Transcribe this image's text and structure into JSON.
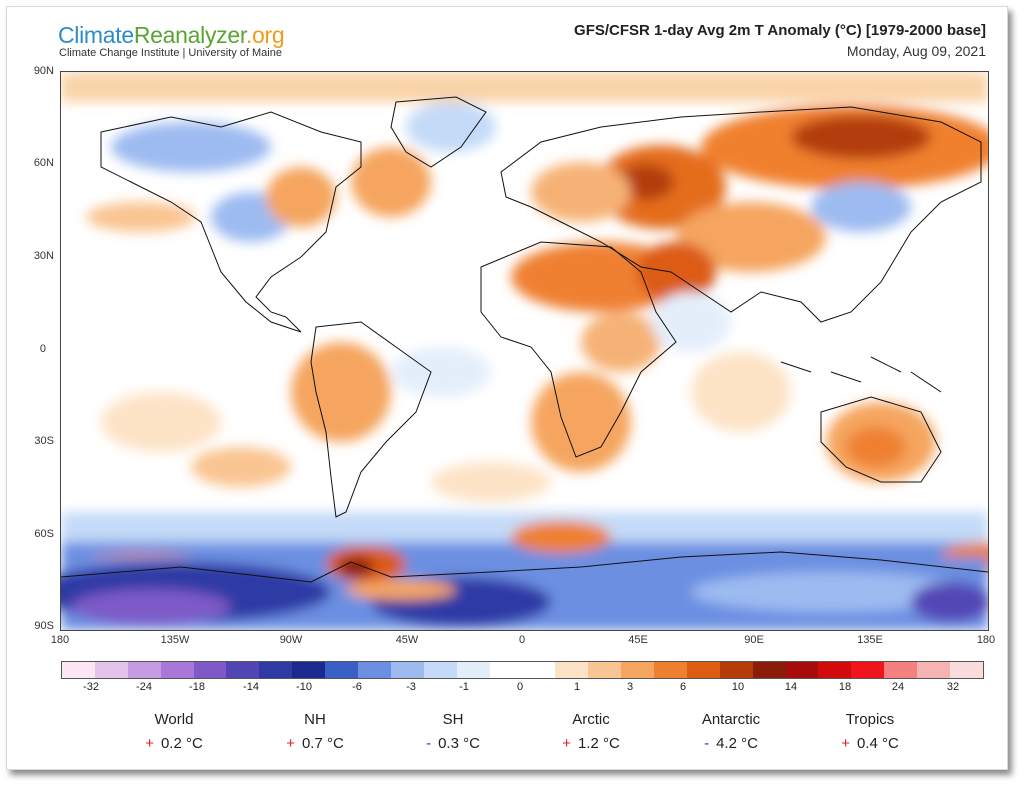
{
  "header": {
    "logo_part1": "Climate",
    "logo_part2": "Reanalyzer",
    "logo_part3": ".org",
    "logo_subtitle": "Climate Change Institute | University of Maine",
    "map_title": "GFS/CFSR 1-day Avg 2m T Anomaly (°C) [1979-2000 base]",
    "map_date": "Monday, Aug 09, 2021",
    "logo_colors": [
      "#2e8bc9",
      "#5aa532",
      "#f29a1c"
    ]
  },
  "map": {
    "lat_labels": [
      "90N",
      "60N",
      "30N",
      "0",
      "30S",
      "60S",
      "90S"
    ],
    "lon_labels": [
      "180",
      "135W",
      "90W",
      "45W",
      "0",
      "45E",
      "90E",
      "135E",
      "180"
    ]
  },
  "colorbar": {
    "tick_labels": [
      "-32",
      "-24",
      "-18",
      "-14",
      "-10",
      "-6",
      "-3",
      "-1",
      "0",
      "1",
      "3",
      "6",
      "10",
      "14",
      "18",
      "24",
      "32"
    ],
    "colors": [
      "#fbe7f3",
      "#e3c3ec",
      "#c79be3",
      "#a977d8",
      "#7d5ac8",
      "#5246b6",
      "#2f3aa5",
      "#1a2a8f",
      "#3a5fc7",
      "#6c8fe2",
      "#9dbbf1",
      "#c4daf8",
      "#e4eefb",
      "#ffffff",
      "#ffffff",
      "#fde3c6",
      "#f9c592",
      "#f5a55f",
      "#ef8030",
      "#dc5c12",
      "#b33c0a",
      "#8a1d0a",
      "#a80b0b",
      "#d30a0a",
      "#f0141c",
      "#f48080",
      "#f6b3b3",
      "#fbdcdc"
    ]
  },
  "stats": [
    {
      "name": "World",
      "sign": "+",
      "value": "0.2 °C",
      "sign_color": "#e02020"
    },
    {
      "name": "NH",
      "sign": "+",
      "value": "0.7 °C",
      "sign_color": "#e02020"
    },
    {
      "name": "SH",
      "sign": "-",
      "value": "0.3 °C",
      "sign_color": "#2a3ab8"
    },
    {
      "name": "Arctic",
      "sign": "+",
      "value": "1.2 °C",
      "sign_color": "#e02020"
    },
    {
      "name": "Antarctic",
      "sign": "-",
      "value": "4.2 °C",
      "sign_color": "#2a3ab8"
    },
    {
      "name": "Tropics",
      "sign": "+",
      "value": "0.4 °C",
      "sign_color": "#e02020"
    }
  ]
}
